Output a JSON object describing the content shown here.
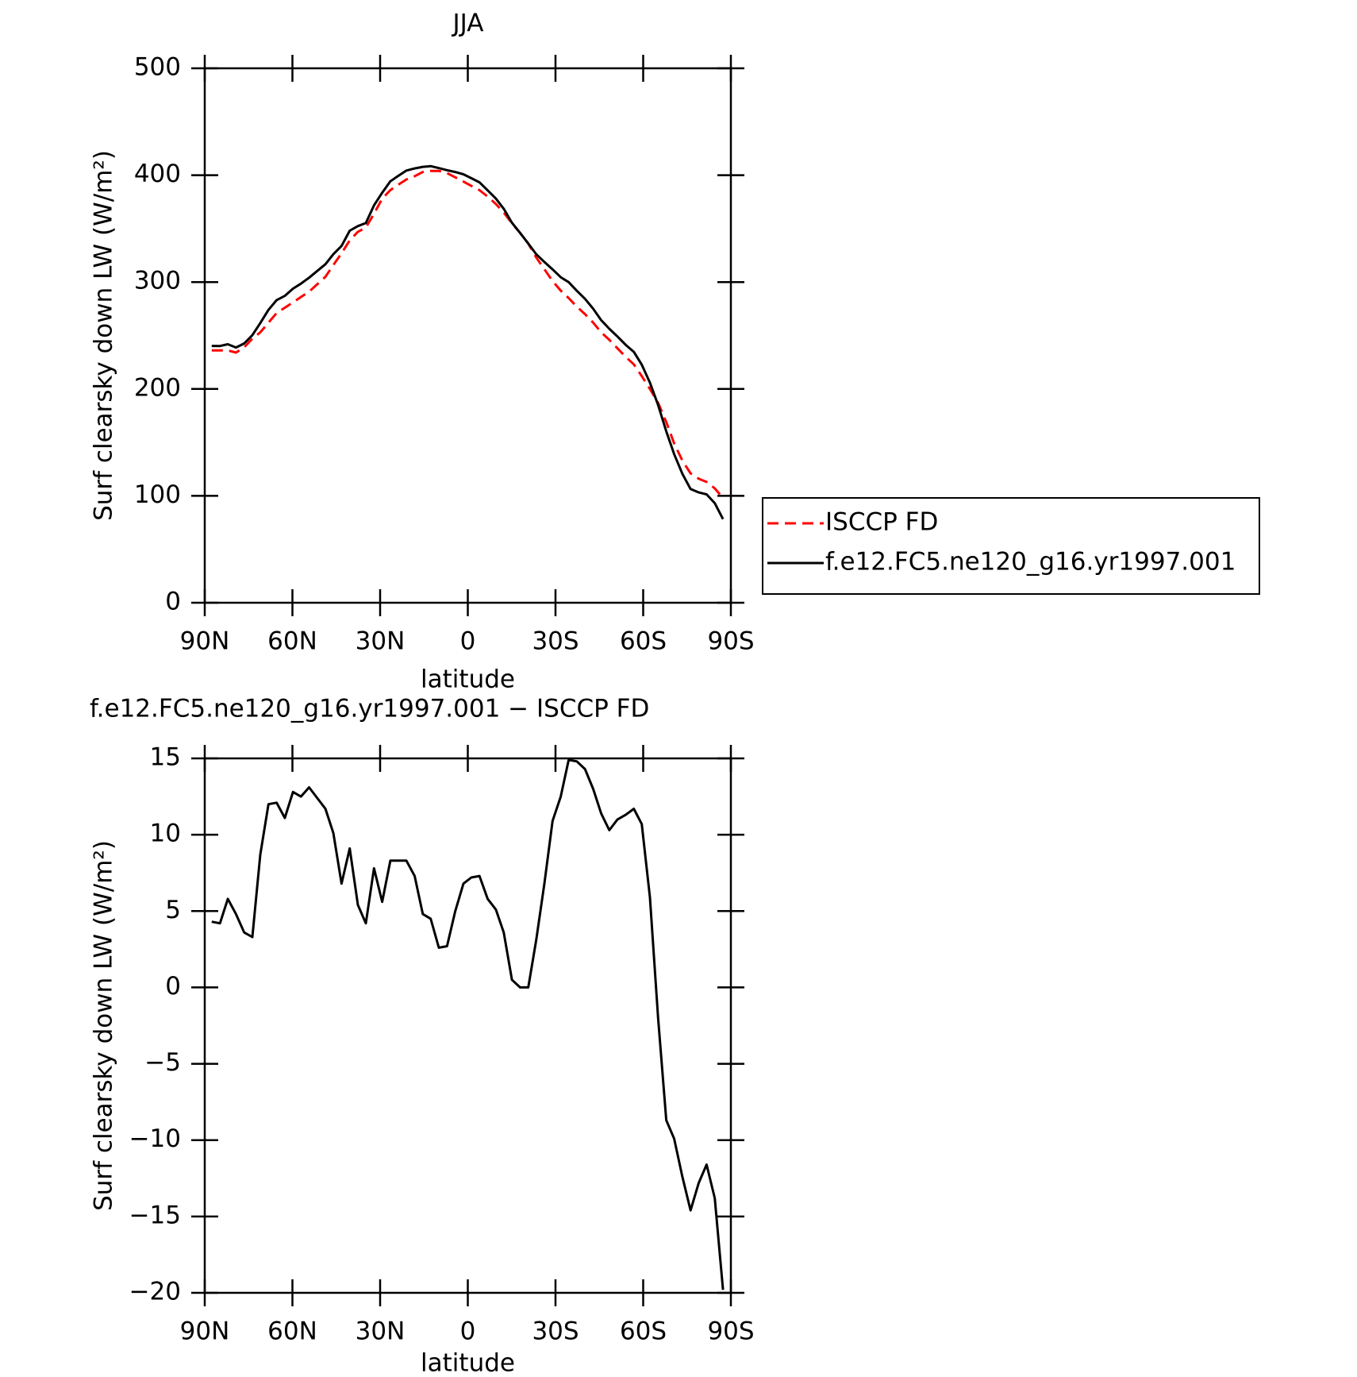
{
  "chart_data": [
    {
      "type": "line",
      "title": "JJA",
      "y_label": "Surf clearsky down LW (W/m²)",
      "x_label": "latitude",
      "x": [
        87.6,
        84.8,
        82.1,
        79.3,
        76.5,
        73.7,
        71.0,
        68.2,
        65.4,
        62.6,
        59.8,
        57.1,
        54.3,
        51.5,
        48.7,
        46.0,
        43.2,
        40.4,
        37.6,
        34.9,
        32.1,
        29.3,
        26.5,
        23.8,
        21.0,
        18.2,
        15.4,
        12.7,
        9.9,
        7.1,
        4.3,
        1.5,
        -1.2,
        -4.0,
        -6.8,
        -9.6,
        -12.3,
        -15.1,
        -17.9,
        -20.7,
        -23.4,
        -26.2,
        -29.0,
        -31.8,
        -34.5,
        -37.3,
        -40.1,
        -42.9,
        -45.6,
        -48.4,
        -51.2,
        -54.0,
        -56.8,
        -59.5,
        -62.3,
        -65.1,
        -67.9,
        -70.6,
        -73.4,
        -76.2,
        -79.0,
        -81.7,
        -84.5,
        -87.3
      ],
      "series": [
        {
          "name": "ISCCP FD",
          "color": "#ff0000",
          "dashed": true,
          "values": [
            236,
            236,
            236,
            234,
            239,
            247,
            253,
            262,
            271,
            276,
            281,
            286,
            291,
            298,
            305,
            316,
            327,
            339,
            347,
            351,
            364,
            378,
            386,
            391,
            396,
            399,
            403,
            404,
            404,
            402,
            398,
            394,
            390,
            386,
            380,
            373,
            365,
            355,
            346,
            336,
            323,
            312,
            301,
            292,
            285,
            277,
            270,
            262,
            253,
            246,
            238,
            230,
            223,
            212,
            200,
            187,
            169,
            149,
            133,
            121,
            116,
            113,
            107,
            98
          ]
        },
        {
          "name": "f.e12.FC5.ne120_g16.yr1997.001",
          "color": "#000000",
          "dashed": false,
          "values": [
            240.3,
            240.2,
            241.8,
            238.8,
            242.6,
            250.3,
            261.7,
            274.0,
            283.1,
            287.1,
            293.8,
            298.5,
            304.1,
            310.4,
            316.7,
            326.1,
            333.8,
            348.1,
            352.4,
            355.2,
            371.8,
            383.6,
            394.3,
            399.3,
            404.3,
            406.3,
            407.8,
            408.5,
            406.6,
            404.7,
            403.0,
            400.8,
            397.2,
            393.3,
            385.8,
            378.1,
            368.6,
            355.5,
            346,
            336,
            326.1,
            318.8,
            311.9,
            304.5,
            299.9,
            291.8,
            284.3,
            275.0,
            264.4,
            256.3,
            249.0,
            241.3,
            234.7,
            222.7,
            205.9,
            185.0,
            160.3,
            139.1,
            120.6,
            106.4,
            103.2,
            101.4,
            93.2,
            78.2
          ]
        }
      ],
      "xlim": [
        90,
        -90
      ],
      "xticks": [
        {
          "value": 90,
          "label": "90N"
        },
        {
          "value": 60,
          "label": "60N"
        },
        {
          "value": 30,
          "label": "30N"
        },
        0,
        {
          "value": -30,
          "label": "30S"
        },
        {
          "value": -60,
          "label": "60S"
        },
        {
          "value": -90,
          "label": "90S"
        }
      ],
      "ylim": [
        0,
        500
      ],
      "yticks": [
        0,
        100,
        200,
        300,
        400,
        500
      ],
      "legend": "right"
    },
    {
      "type": "line",
      "title": "f.e12.FC5.ne120_g16.yr1997.001 − ISCCP FD",
      "y_label": "Surf clearsky down LW (W/m²)",
      "x_label": "latitude",
      "x": [
        87.6,
        84.8,
        82.1,
        79.3,
        76.5,
        73.7,
        71.0,
        68.2,
        65.4,
        62.6,
        59.8,
        57.1,
        54.3,
        51.5,
        48.7,
        46.0,
        43.2,
        40.4,
        37.6,
        34.9,
        32.1,
        29.3,
        26.5,
        23.8,
        21.0,
        18.2,
        15.4,
        12.7,
        9.9,
        7.1,
        4.3,
        1.5,
        -1.2,
        -4.0,
        -6.8,
        -9.6,
        -12.3,
        -15.1,
        -17.9,
        -20.7,
        -23.4,
        -26.2,
        -29.0,
        -31.8,
        -34.5,
        -37.3,
        -40.1,
        -42.9,
        -45.6,
        -48.4,
        -51.2,
        -54.0,
        -56.8,
        -59.5,
        -62.3,
        -65.1,
        -67.9,
        -70.6,
        -73.4,
        -76.2,
        -79.0,
        -81.7,
        -84.5,
        -87.3
      ],
      "series": [
        {
          "color": "#000000",
          "dashed": false,
          "values": [
            4.3,
            4.2,
            5.8,
            4.8,
            3.6,
            3.3,
            8.7,
            12.0,
            12.1,
            11.1,
            12.8,
            12.5,
            13.1,
            12.4,
            11.7,
            10.1,
            6.8,
            9.1,
            5.4,
            4.2,
            7.8,
            5.6,
            8.3,
            8.3,
            8.3,
            7.3,
            4.8,
            4.5,
            2.6,
            2.7,
            5.0,
            6.8,
            7.2,
            7.3,
            5.8,
            5.1,
            3.6,
            0.5,
            0,
            0,
            3.1,
            6.8,
            10.9,
            12.5,
            14.9,
            14.8,
            14.3,
            13.0,
            11.4,
            10.3,
            11.0,
            11.3,
            11.7,
            10.7,
            5.9,
            -2.0,
            -8.7,
            -9.9,
            -12.4,
            -14.6,
            -12.8,
            -11.6,
            -13.8,
            -19.8
          ]
        }
      ],
      "xlim": [
        90,
        -90
      ],
      "xticks": [
        {
          "value": 90,
          "label": "90N"
        },
        {
          "value": 60,
          "label": "60N"
        },
        {
          "value": 30,
          "label": "30N"
        },
        0,
        {
          "value": -30,
          "label": "30S"
        },
        {
          "value": -60,
          "label": "60S"
        },
        {
          "value": -90,
          "label": "90S"
        }
      ],
      "ylim": [
        -20,
        15
      ],
      "yticks": [
        {
          "value": -20,
          "label": "−20"
        },
        {
          "value": -15,
          "label": "−15"
        },
        {
          "value": -10,
          "label": "−10"
        },
        {
          "value": -5,
          "label": "−5"
        },
        0,
        5,
        10,
        15
      ]
    }
  ]
}
